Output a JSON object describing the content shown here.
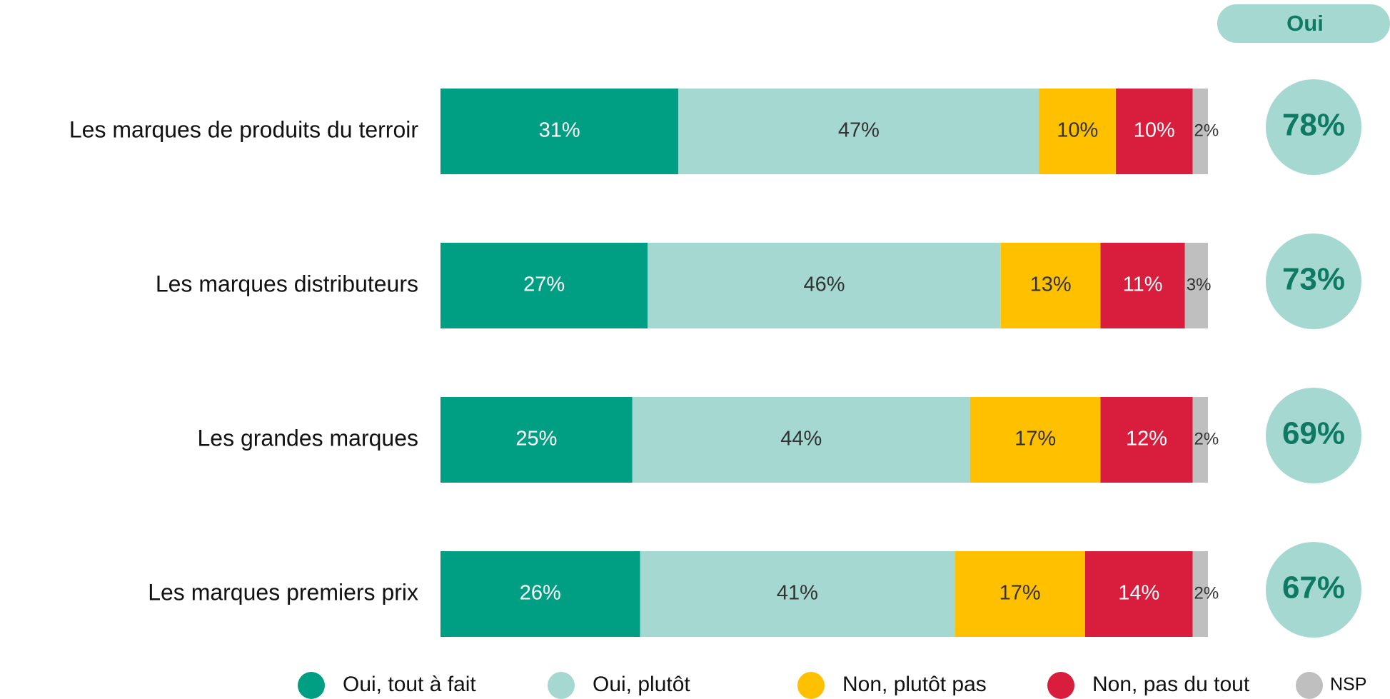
{
  "chart_data": {
    "type": "stacked_barh",
    "categories": [
      "Les marques de produits du terroir",
      "Les marques distributeurs",
      "Les grandes marques",
      "Les marques premiers prix"
    ],
    "xlim": [
      0,
      100
    ],
    "series": [
      {
        "name": "Oui, tout à fait",
        "color": "#009e82",
        "label_color": "#ffffff",
        "values": [
          31,
          27,
          25,
          26
        ],
        "value_labels": [
          "31%",
          "27%",
          "25%",
          "26%"
        ]
      },
      {
        "name": "Oui, plutôt",
        "color": "#a6d8d2",
        "label_color": "#333333",
        "values": [
          47,
          46,
          44,
          41
        ],
        "value_labels": [
          "47%",
          "46%",
          "44%",
          "41%"
        ]
      },
      {
        "name": "Non, plutôt pas",
        "color": "#ffc000",
        "label_color": "#333333",
        "values": [
          10,
          13,
          17,
          17
        ],
        "value_labels": [
          "10%",
          "13%",
          "17%",
          "17%"
        ]
      },
      {
        "name": "Non, pas du tout",
        "color": "#d81e3c",
        "label_color": "#ffffff",
        "values": [
          10,
          11,
          12,
          14
        ],
        "value_labels": [
          "10%",
          "11%",
          "12%",
          "14%"
        ]
      },
      {
        "name": "NSP",
        "color": "#bfbfbf",
        "label_color": "#333333",
        "values": [
          2,
          3,
          2,
          2
        ],
        "value_labels": [
          "2%",
          "3%",
          "2%",
          "2%"
        ]
      }
    ],
    "totals": {
      "title": "Oui",
      "color": "#a6d8d2",
      "label_color": "#0f7a64",
      "values": [
        78,
        73,
        69,
        67
      ],
      "value_labels": [
        "78%",
        "73%",
        "69%",
        "67%"
      ]
    },
    "legend": "bottom"
  }
}
